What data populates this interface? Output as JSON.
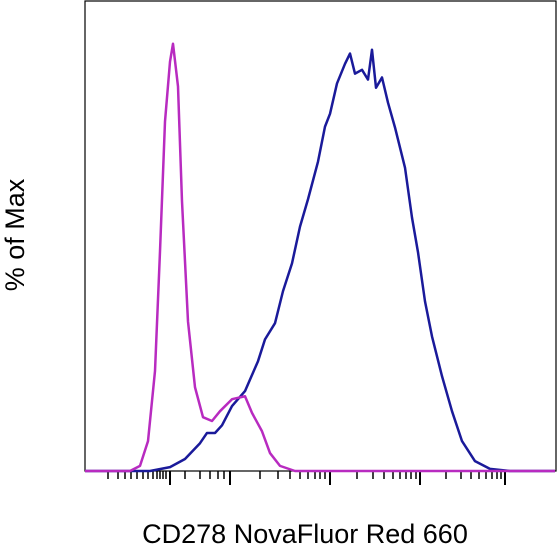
{
  "chart_data": {
    "type": "line",
    "x_label": "CD278 NovaFluor Red 660",
    "y_label": "% of Max",
    "xlim": [
      0,
      472
    ],
    "ylim": [
      0,
      110
    ],
    "xticks": [
      85,
      145,
      245,
      335,
      420
    ],
    "xminorticks": [
      23,
      33,
      40,
      46,
      52,
      58,
      63,
      68,
      72,
      75,
      78,
      81,
      100,
      115,
      125,
      133,
      139,
      175,
      193,
      205,
      215,
      223,
      230,
      235,
      240,
      272,
      288,
      299,
      308,
      315,
      321,
      326,
      331,
      361,
      376,
      386,
      394,
      401,
      407,
      412,
      416
    ],
    "series": [
      {
        "color": "#1a1a9a",
        "x": [
          0,
          65,
          85,
          100,
          115,
          122,
          130,
          137,
          147,
          160,
          173,
          180,
          190,
          198,
          207,
          215,
          223,
          233,
          240,
          245,
          252,
          260,
          265,
          270,
          277,
          283,
          287,
          291,
          297,
          303,
          310,
          320,
          327,
          333,
          340,
          347,
          357,
          367,
          377,
          390,
          405,
          425,
          470
        ],
        "values": [
          0,
          0,
          0.9,
          2.8,
          6.5,
          8.9,
          8.9,
          10.7,
          15.2,
          18.7,
          25.7,
          30.8,
          34.6,
          42.1,
          48.6,
          57.2,
          63.6,
          72.4,
          80.6,
          83.6,
          90.7,
          95.3,
          97.7,
          93.0,
          93.9,
          91.6,
          98.6,
          89.7,
          92.1,
          86.2,
          80.4,
          71.0,
          59.3,
          51.2,
          39.7,
          31.5,
          22.2,
          14.0,
          7.0,
          2.3,
          0.5,
          0,
          0
        ]
      },
      {
        "color": "#b82bc0",
        "x": [
          0,
          45,
          55,
          63,
          70,
          75,
          80,
          85,
          88,
          93,
          97,
          103,
          110,
          118,
          127,
          135,
          147,
          160,
          167,
          177,
          185,
          195,
          210,
          470
        ],
        "values": [
          0,
          0,
          1.2,
          7.0,
          23.4,
          51.4,
          81.8,
          95.8,
          100,
          90.0,
          63.1,
          35.0,
          19.6,
          12.6,
          11.7,
          14.0,
          16.8,
          17.5,
          13.6,
          9.3,
          4.2,
          1.2,
          0,
          0
        ]
      }
    ]
  }
}
